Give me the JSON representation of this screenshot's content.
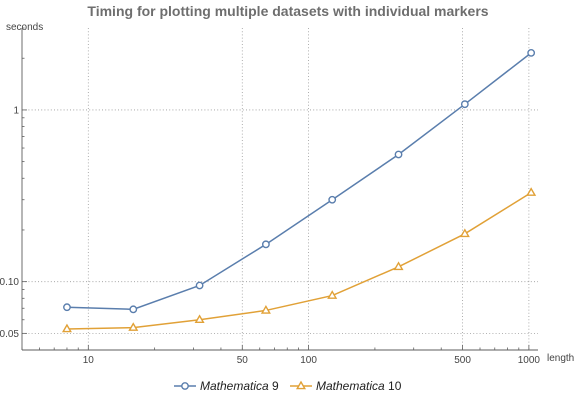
{
  "chart_data": {
    "type": "line",
    "title": "Timing for plotting multiple datasets with individual markers",
    "xlabel": "length",
    "ylabel": "seconds",
    "x_scale": "log",
    "y_scale": "log",
    "xlim": [
      5,
      1100
    ],
    "ylim": [
      0.04,
      3
    ],
    "grid": true,
    "legend_position": "bottom",
    "x_ticks_major": [
      10,
      50,
      100,
      500,
      1000
    ],
    "y_ticks_major": [
      0.05,
      0.1,
      1
    ],
    "y_tick_labels": [
      "0.05",
      "0.10",
      "1"
    ],
    "x": [
      8,
      16,
      32,
      64,
      128,
      256,
      512,
      1024
    ],
    "series": [
      {
        "name": "Mathematica 9",
        "name_italic": "Mathematica",
        "name_version": "9",
        "marker": "circle",
        "color": "#5a7ead",
        "values": [
          0.071,
          0.069,
          0.095,
          0.165,
          0.3,
          0.55,
          1.08,
          2.15
        ]
      },
      {
        "name": "Mathematica 10",
        "name_italic": "Mathematica",
        "name_version": "10",
        "marker": "triangle",
        "color": "#e1a137",
        "values": [
          0.053,
          0.054,
          0.06,
          0.068,
          0.083,
          0.122,
          0.19,
          0.33
        ]
      }
    ]
  }
}
